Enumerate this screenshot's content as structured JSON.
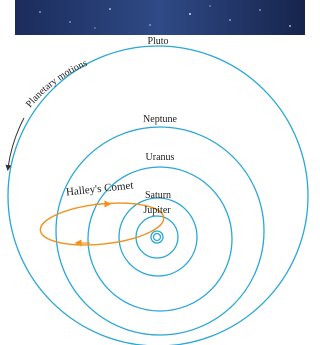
{
  "labels": {
    "pluto": "Pluto",
    "neptune": "Neptune",
    "uranus": "Uranus",
    "saturn": "Saturn",
    "jupiter": "Jupiter",
    "comet": "Halley's Comet",
    "motion": "Planetary motions"
  }
}
